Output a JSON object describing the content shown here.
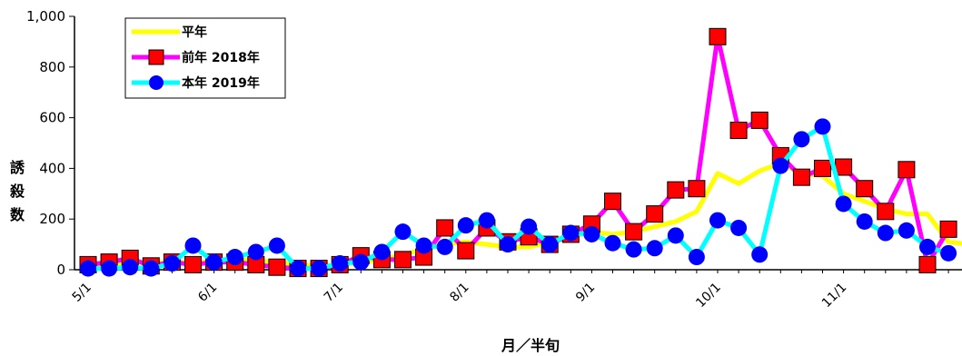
{
  "chart_data": {
    "type": "line",
    "ylim": [
      0,
      1000
    ],
    "y_ticks": [
      "1,000",
      "800",
      "600",
      "400",
      "200",
      "0"
    ],
    "y_tick_values": [
      1000,
      800,
      600,
      400,
      200,
      0
    ],
    "x_tick_labels": [
      "5/1",
      "6/1",
      "7/1",
      "8/1",
      "9/1",
      "10/1",
      "11/1"
    ],
    "x_tick_index": [
      0,
      6,
      12,
      18,
      24,
      30,
      36
    ],
    "xlabel": "月／半旬",
    "ylabel": [
      "誘",
      "殺",
      "数"
    ],
    "legend_position": "top-left",
    "grid": false,
    "series": [
      {
        "name": "平年",
        "color": "#ffff00",
        "marker": "none",
        "values": [
          20,
          25,
          30,
          25,
          30,
          30,
          30,
          40,
          35,
          30,
          20,
          15,
          20,
          30,
          40,
          60,
          80,
          100,
          110,
          100,
          90,
          90,
          110,
          130,
          150,
          140,
          150,
          170,
          190,
          230,
          380,
          340,
          390,
          420,
          380,
          370,
          300,
          270,
          240,
          220,
          220,
          110,
          100
        ]
      },
      {
        "name": "前年 2018年",
        "color": "#ff00ff",
        "marker": "square",
        "marker_color": "#ff0000",
        "values": [
          20,
          30,
          45,
          15,
          30,
          20,
          30,
          30,
          20,
          10,
          5,
          5,
          20,
          55,
          40,
          40,
          50,
          165,
          75,
          165,
          110,
          130,
          100,
          140,
          180,
          270,
          150,
          220,
          315,
          320,
          920,
          550,
          590,
          450,
          365,
          400,
          405,
          320,
          230,
          395,
          20,
          160
        ]
      },
      {
        "name": "本年 2019年",
        "color": "#00ffff",
        "marker": "circle",
        "marker_color": "#0000ff",
        "values": [
          5,
          5,
          10,
          5,
          25,
          95,
          30,
          50,
          70,
          95,
          5,
          5,
          25,
          30,
          70,
          150,
          95,
          90,
          175,
          195,
          100,
          170,
          100,
          145,
          140,
          105,
          80,
          85,
          135,
          50,
          195,
          165,
          60,
          410,
          515,
          565,
          260,
          190,
          145,
          155,
          90,
          65
        ]
      }
    ]
  }
}
